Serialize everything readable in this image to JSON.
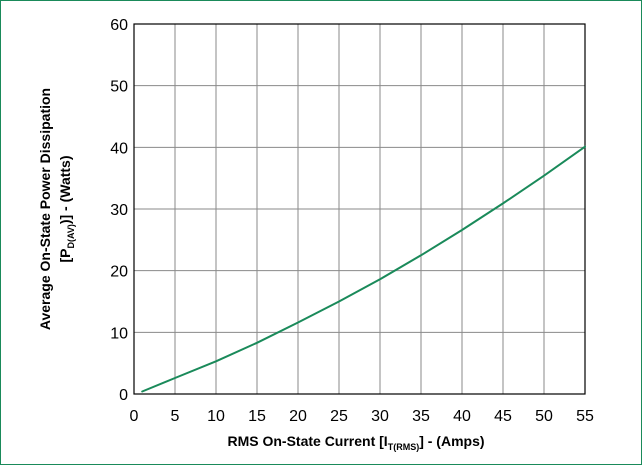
{
  "chart_data": {
    "type": "line",
    "xlabel_main": "RMS On-State Current [I",
    "xlabel_sub": "T(RMS)",
    "xlabel_tail": "] - (Amps)",
    "ylabel_line1": "Average On-State Power Dissipation",
    "ylabel_line2_main": "[P",
    "ylabel_line2_sub": "D(AV)",
    "ylabel_line2_tail": ")] - (Watts)",
    "xlim": [
      0,
      55
    ],
    "ylim": [
      0,
      60
    ],
    "x_ticks": [
      "0",
      "5",
      "10",
      "15",
      "20",
      "25",
      "30",
      "35",
      "40",
      "45",
      "50",
      "55"
    ],
    "y_ticks": [
      "0",
      "10",
      "20",
      "30",
      "40",
      "50",
      "60"
    ],
    "grid": true,
    "line_color": "#1a8a5a",
    "frame_color": "#1a8a5a",
    "series": [
      {
        "x": [
          1,
          5,
          10,
          15,
          20,
          25,
          30,
          35,
          40,
          45,
          50,
          55
        ],
        "y": [
          0.4,
          2.6,
          5.3,
          8.3,
          11.6,
          15.0,
          18.6,
          22.5,
          26.6,
          30.9,
          35.4,
          40.1
        ]
      }
    ]
  }
}
